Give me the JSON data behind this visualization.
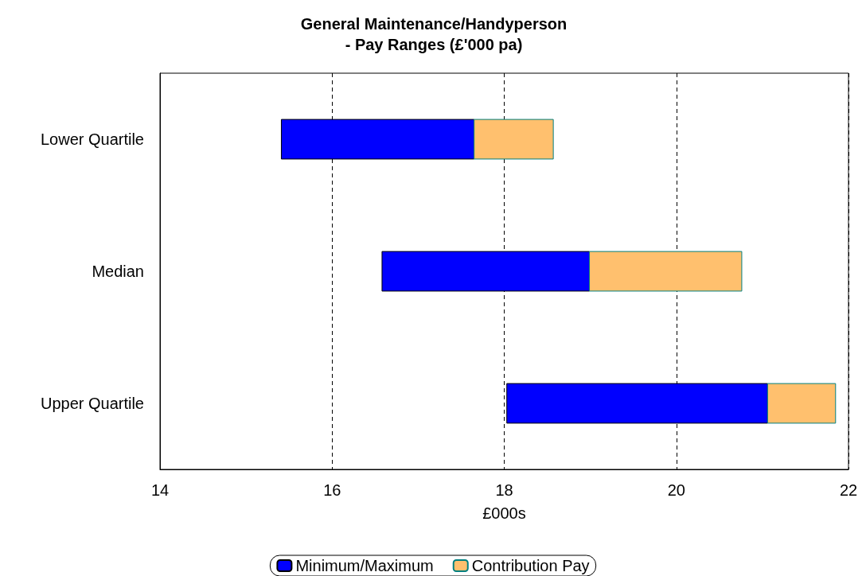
{
  "chart_data": {
    "type": "bar",
    "title": "General Maintenance/Handyperson\n- Pay Ranges (£'000 pa)",
    "xlabel": "£000s",
    "orientation": "horizontal",
    "categories": [
      "Lower Quartile",
      "Median",
      "Upper Quartile"
    ],
    "series": [
      {
        "name": "Minimum/Maximum",
        "color": "#0000ff",
        "base": [
          15.41,
          16.58,
          18.03
        ],
        "values": [
          2.24,
          2.41,
          3.03
        ]
      },
      {
        "name": "Contribution Pay",
        "color": "#ffc06e",
        "base": [
          17.65,
          18.99,
          21.06
        ],
        "values": [
          0.92,
          1.77,
          0.79
        ]
      }
    ],
    "xlim": [
      14,
      22
    ],
    "xticks": [
      14,
      16,
      18,
      20,
      22
    ],
    "grid": "x",
    "legend": "bottom"
  }
}
